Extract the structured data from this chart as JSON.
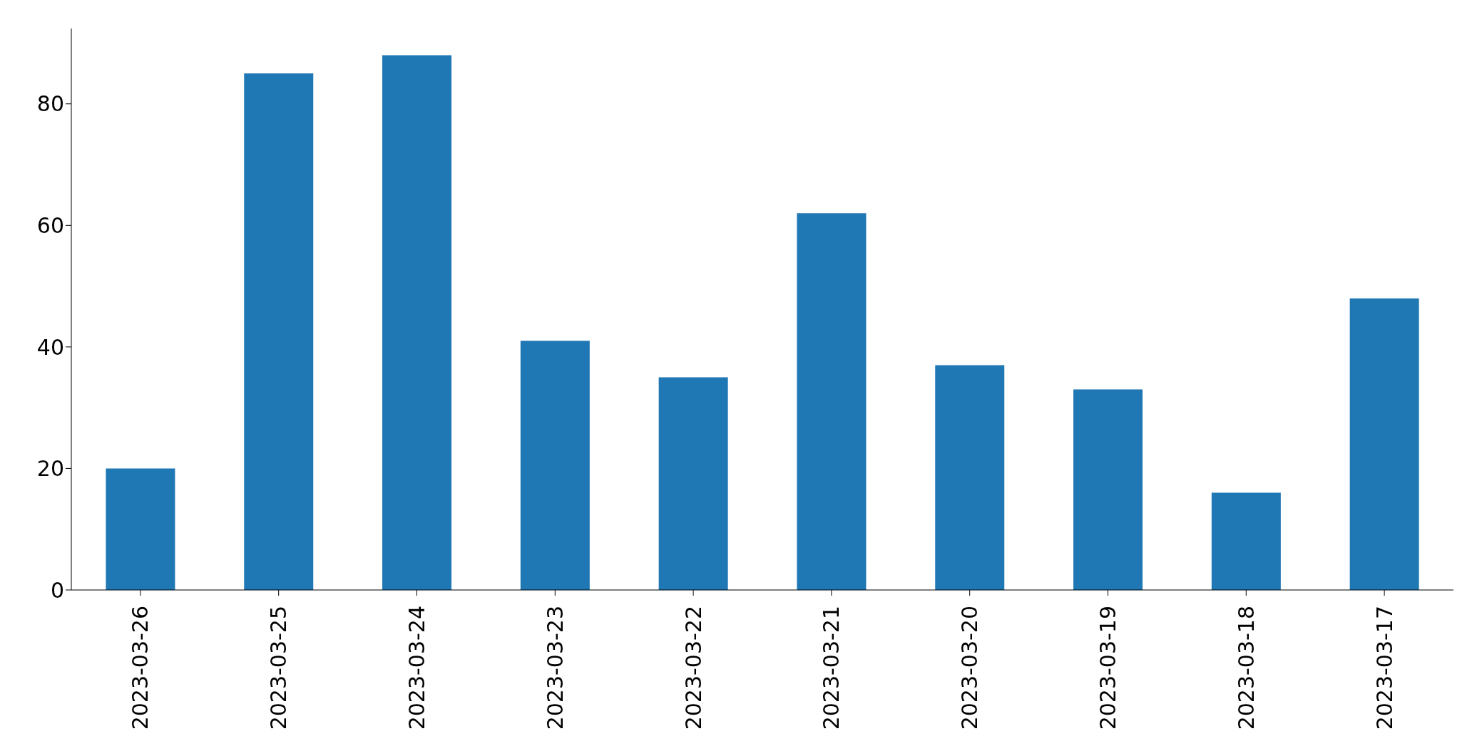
{
  "chart_data": {
    "type": "bar",
    "categories": [
      "2023-03-26",
      "2023-03-25",
      "2023-03-24",
      "2023-03-23",
      "2023-03-22",
      "2023-03-21",
      "2023-03-20",
      "2023-03-19",
      "2023-03-18",
      "2023-03-17"
    ],
    "values": [
      20,
      85,
      88,
      41,
      35,
      62,
      37,
      33,
      16,
      48
    ],
    "color": "#1f77b4",
    "ylim": [
      0,
      92.4
    ],
    "yticks": [
      0,
      20,
      40,
      60,
      80
    ],
    "grid": false,
    "legend": false
  }
}
